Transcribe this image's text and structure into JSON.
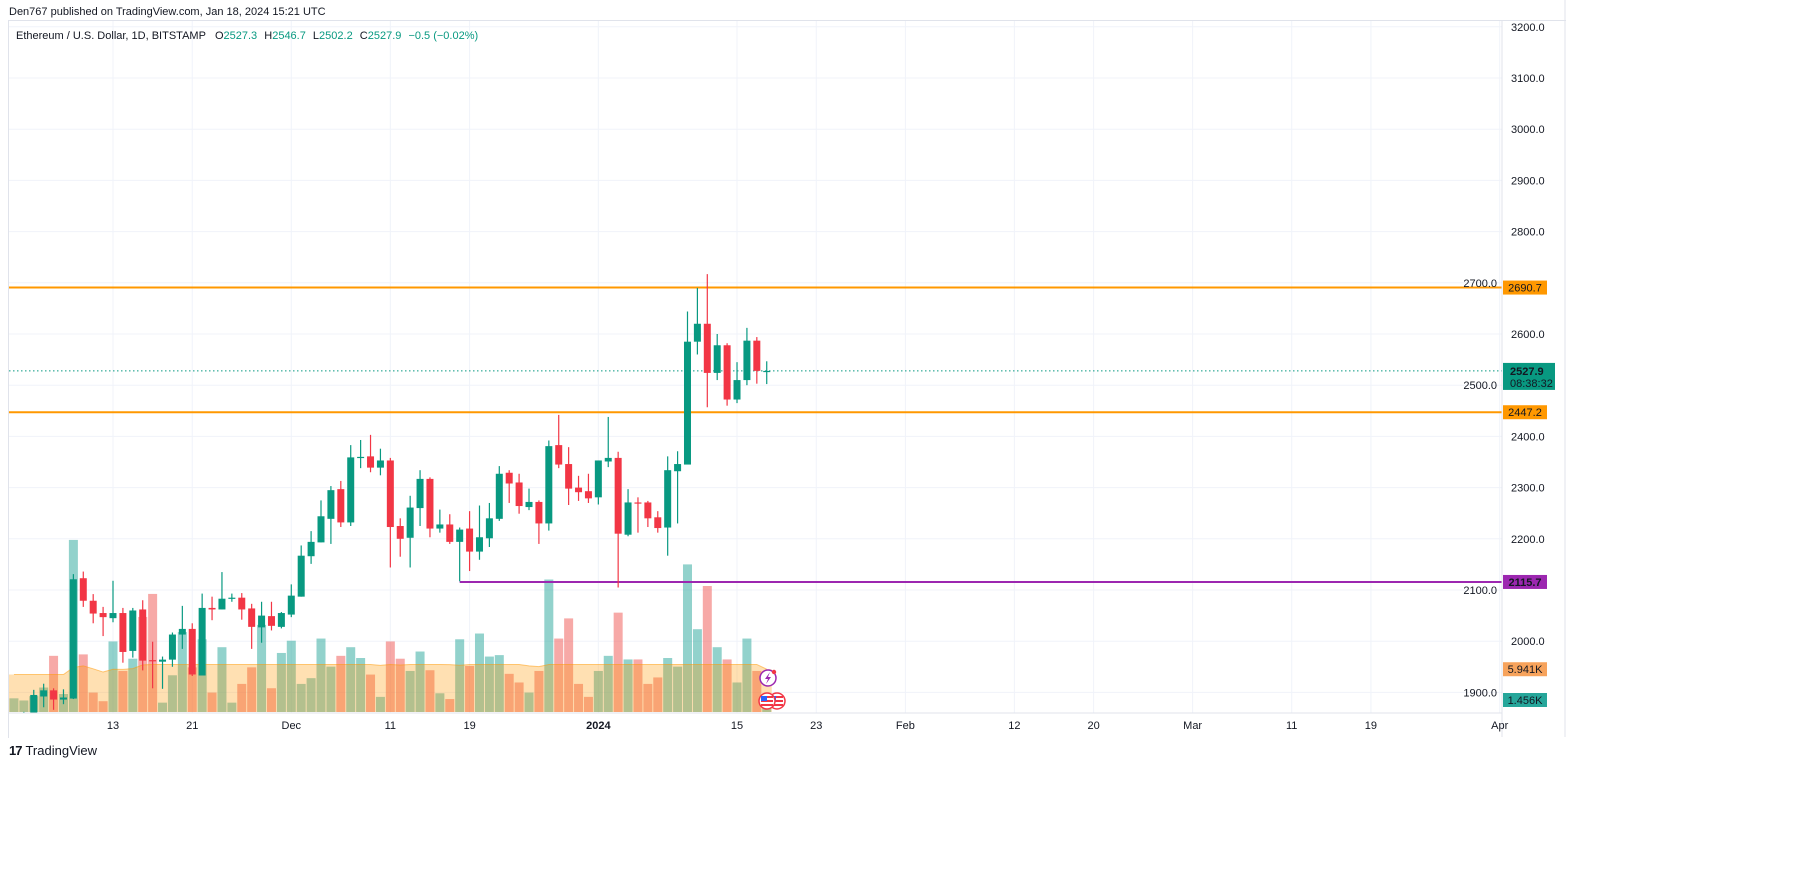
{
  "header": {
    "published": "Den767 published on TradingView.com, Jan 18, 2024 15:21 UTC"
  },
  "legend": {
    "symbol": "Ethereum / U.S. Dollar, 1D, BITSTAMP",
    "open_label": "O",
    "open": "2527.3",
    "high_label": "H",
    "high": "2546.7",
    "low_label": "L",
    "low": "2502.2",
    "close_label": "C",
    "close": "2527.9",
    "change": "−0.5 (−0.02%)"
  },
  "colors": {
    "up": "#089981",
    "down": "#f23645",
    "level_orange": "#ff9800",
    "level_purple": "#9c27b0",
    "volume_ma": "#ff9800"
  },
  "price_axis": {
    "ticks": [
      "3200.0",
      "3100.0",
      "3000.0",
      "2900.0",
      "2800.0",
      "2700.0",
      "2600.0",
      "2500.0",
      "2400.0",
      "2300.0",
      "2200.0",
      "2100.0",
      "2000.0",
      "1900.0"
    ],
    "tick_values": [
      3200,
      3100,
      3000,
      2900,
      2800,
      2700,
      2600,
      2500,
      2400,
      2300,
      2200,
      2100,
      2000,
      1900
    ]
  },
  "time_axis": {
    "labels": [
      {
        "text": "13",
        "date": "2023-11-13"
      },
      {
        "text": "21",
        "date": "2023-11-21"
      },
      {
        "text": "Dec",
        "date": "2023-12-01"
      },
      {
        "text": "11",
        "date": "2023-12-11"
      },
      {
        "text": "19",
        "date": "2023-12-19"
      },
      {
        "text": "2024",
        "date": "2024-01-01",
        "bold": true
      },
      {
        "text": "15",
        "date": "2024-01-15"
      },
      {
        "text": "23",
        "date": "2024-01-23"
      },
      {
        "text": "Feb",
        "date": "2024-02-01"
      },
      {
        "text": "12",
        "date": "2024-02-12"
      },
      {
        "text": "20",
        "date": "2024-02-20"
      },
      {
        "text": "Mar",
        "date": "2024-03-01"
      },
      {
        "text": "11",
        "date": "2024-03-11"
      },
      {
        "text": "19",
        "date": "2024-03-19"
      },
      {
        "text": "Apr",
        "date": "2024-04-01"
      }
    ]
  },
  "levels": [
    {
      "price": 2690.7,
      "label": "2690.7",
      "color": "#ff9800",
      "from": null
    },
    {
      "price": 2447.2,
      "label": "2447.2",
      "color": "#ff9800",
      "from": null
    },
    {
      "price": 2115.7,
      "label": "2115.7",
      "color": "#9c27b0",
      "from": "2023-12-18"
    }
  ],
  "last_price": {
    "price": 2527.9,
    "label": "2527.9",
    "countdown": "08:38:32"
  },
  "volume": {
    "ma_label": "5.941K",
    "last_label": "1.456K",
    "unit": "K"
  },
  "candles_fields": [
    "date",
    "open",
    "high",
    "low",
    "close",
    "volume_k"
  ],
  "candles": [
    [
      "2023-11-03",
      1800,
      1850,
      1780,
      1832,
      1.9
    ],
    [
      "2023-11-04",
      1832,
      1862,
      1825,
      1858,
      1.6
    ],
    [
      "2023-11-05",
      1858,
      1905,
      1850,
      1895,
      2.2
    ],
    [
      "2023-11-06",
      1892,
      1917,
      1871,
      1904,
      3.4
    ],
    [
      "2023-11-07",
      1904,
      1908,
      1866,
      1886,
      7.8
    ],
    [
      "2023-11-08",
      1886,
      1906,
      1877,
      1890,
      2.5
    ],
    [
      "2023-11-09",
      1888,
      2131,
      1887,
      2121,
      23.9
    ],
    [
      "2023-11-10",
      2123,
      2136,
      2067,
      2079,
      8.0
    ],
    [
      "2023-11-11",
      2079,
      2092,
      2035,
      2054,
      2.7
    ],
    [
      "2023-11-12",
      2055,
      2067,
      2010,
      2047,
      1.5
    ],
    [
      "2023-11-13",
      2045,
      2118,
      2037,
      2055,
      9.8
    ],
    [
      "2023-11-14",
      2055,
      2065,
      1958,
      1979,
      5.7
    ],
    [
      "2023-11-15",
      1981,
      2065,
      1968,
      2060,
      7.4
    ],
    [
      "2023-11-16",
      2062,
      2080,
      1943,
      1962,
      13.2
    ],
    [
      "2023-11-17",
      1963,
      1999,
      1908,
      1962,
      16.4
    ],
    [
      "2023-11-18",
      1960,
      1970,
      1907,
      1964,
      1.3
    ],
    [
      "2023-11-19",
      1964,
      2017,
      1950,
      2013,
      5.1
    ],
    [
      "2023-11-20",
      2013,
      2069,
      1985,
      2024,
      11.1
    ],
    [
      "2023-11-21",
      2024,
      2035,
      1932,
      1935,
      6.2
    ],
    [
      "2023-11-22",
      1933,
      2093,
      1933,
      2065,
      10.1
    ],
    [
      "2023-11-23",
      2065,
      2087,
      2041,
      2062,
      2.7
    ],
    [
      "2023-11-24",
      2062,
      2135,
      2062,
      2083,
      9.0
    ],
    [
      "2023-11-25",
      2084,
      2093,
      2077,
      2085,
      1.3
    ],
    [
      "2023-11-26",
      2085,
      2094,
      2042,
      2062,
      3.9
    ],
    [
      "2023-11-27",
      2064,
      2073,
      1985,
      2028,
      6.2
    ],
    [
      "2023-11-28",
      2027,
      2077,
      1997,
      2050,
      12.1
    ],
    [
      "2023-11-29",
      2049,
      2077,
      2021,
      2030,
      3.3
    ],
    [
      "2023-11-30",
      2028,
      2057,
      2025,
      2055,
      8.2
    ],
    [
      "2023-12-01",
      2052,
      2111,
      2047,
      2089,
      9.9
    ],
    [
      "2023-12-02",
      2087,
      2187,
      2087,
      2167,
      3.9
    ],
    [
      "2023-12-03",
      2166,
      2215,
      2151,
      2194,
      4.7
    ],
    [
      "2023-12-04",
      2193,
      2275,
      2193,
      2244,
      10.2
    ],
    [
      "2023-12-05",
      2239,
      2303,
      2190,
      2295,
      6.3
    ],
    [
      "2023-12-06",
      2297,
      2313,
      2223,
      2232,
      7.8
    ],
    [
      "2023-12-07",
      2232,
      2383,
      2225,
      2359,
      9.0
    ],
    [
      "2023-12-08",
      2358,
      2393,
      2338,
      2360,
      7.5
    ],
    [
      "2023-12-09",
      2361,
      2403,
      2330,
      2339,
      5.2
    ],
    [
      "2023-12-10",
      2339,
      2376,
      2324,
      2353,
      2.1
    ],
    [
      "2023-12-11",
      2353,
      2358,
      2144,
      2223,
      9.8
    ],
    [
      "2023-12-12",
      2225,
      2240,
      2165,
      2200,
      7.4
    ],
    [
      "2023-12-13",
      2202,
      2284,
      2144,
      2261,
      5.7
    ],
    [
      "2023-12-14",
      2260,
      2334,
      2225,
      2317,
      8.4
    ],
    [
      "2023-12-15",
      2317,
      2320,
      2203,
      2220,
      5.8
    ],
    [
      "2023-12-16",
      2220,
      2257,
      2212,
      2228,
      2.6
    ],
    [
      "2023-12-17",
      2228,
      2248,
      2190,
      2194,
      1.8
    ],
    [
      "2023-12-18",
      2194,
      2222,
      2117,
      2218,
      10.1
    ],
    [
      "2023-12-19",
      2220,
      2254,
      2137,
      2175,
      6.4
    ],
    [
      "2023-12-20",
      2175,
      2265,
      2159,
      2203,
      10.9
    ],
    [
      "2023-12-21",
      2201,
      2270,
      2184,
      2240,
      7.7
    ],
    [
      "2023-12-22",
      2239,
      2342,
      2235,
      2327,
      7.9
    ],
    [
      "2023-12-23",
      2329,
      2334,
      2270,
      2308,
      5.3
    ],
    [
      "2023-12-24",
      2310,
      2327,
      2249,
      2264,
      4.1
    ],
    [
      "2023-12-25",
      2262,
      2298,
      2256,
      2272,
      2.7
    ],
    [
      "2023-12-26",
      2272,
      2275,
      2190,
      2230,
      5.7
    ],
    [
      "2023-12-27",
      2230,
      2392,
      2216,
      2381,
      18.4
    ],
    [
      "2023-12-28",
      2383,
      2442,
      2338,
      2345,
      10.2
    ],
    [
      "2023-12-29",
      2346,
      2379,
      2266,
      2298,
      13.0
    ],
    [
      "2023-12-30",
      2300,
      2323,
      2274,
      2291,
      3.9
    ],
    [
      "2023-12-31",
      2293,
      2327,
      2270,
      2279,
      2.1
    ],
    [
      "2024-01-01",
      2281,
      2353,
      2267,
      2353,
      5.7
    ],
    [
      "2024-01-02",
      2351,
      2438,
      2340,
      2358,
      7.8
    ],
    [
      "2024-01-03",
      2358,
      2370,
      2105,
      2210,
      13.8
    ],
    [
      "2024-01-04",
      2208,
      2297,
      2205,
      2271,
      7.3
    ],
    [
      "2024-01-05",
      2271,
      2281,
      2212,
      2269,
      7.3
    ],
    [
      "2024-01-06",
      2271,
      2274,
      2223,
      2240,
      3.9
    ],
    [
      "2024-01-07",
      2242,
      2254,
      2212,
      2221,
      4.8
    ],
    [
      "2024-01-08",
      2222,
      2361,
      2167,
      2334,
      7.5
    ],
    [
      "2024-01-09",
      2332,
      2371,
      2230,
      2346,
      6.3
    ],
    [
      "2024-01-10",
      2345,
      2644,
      2345,
      2585,
      20.5
    ],
    [
      "2024-01-11",
      2585,
      2690,
      2560,
      2620,
      11.5
    ],
    [
      "2024-01-12",
      2620,
      2717,
      2457,
      2524,
      17.5
    ],
    [
      "2024-01-13",
      2524,
      2600,
      2510,
      2578,
      9.0
    ],
    [
      "2024-01-14",
      2578,
      2582,
      2460,
      2472,
      7.3
    ],
    [
      "2024-01-15",
      2472,
      2545,
      2465,
      2510,
      4.1
    ],
    [
      "2024-01-16",
      2510,
      2612,
      2500,
      2587,
      10.2
    ],
    [
      "2024-01-17",
      2587,
      2594,
      2503,
      2528,
      5.7
    ],
    [
      "2024-01-18",
      2527.3,
      2546.7,
      2502.2,
      2527.9,
      1.456
    ]
  ],
  "events": [
    {
      "icon": "lightning-icon"
    },
    {
      "icon": "us-flag-icon"
    },
    {
      "icon": "us-flag-icon"
    }
  ],
  "footer": {
    "logo_mark": "17",
    "logo_text": "TradingView"
  }
}
